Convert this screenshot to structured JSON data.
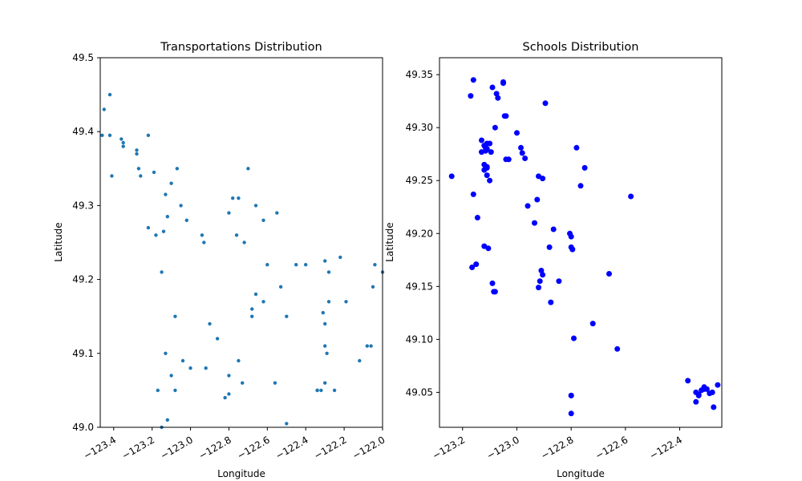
{
  "chart_data": [
    {
      "type": "scatter",
      "title": "Transportations Distribution",
      "xlabel": "Longitude",
      "ylabel": "Latitude",
      "xlim": [
        -123.47,
        -122.0
      ],
      "ylim": [
        49.0,
        49.5
      ],
      "xticks": [
        -123.4,
        -123.2,
        -123.0,
        -122.8,
        -122.6,
        -122.4,
        -122.2,
        -122.0
      ],
      "xtick_labels": [
        "−123.4",
        "−123.2",
        "−123.0",
        "−122.8",
        "−122.6",
        "−122.4",
        "−122.2",
        "−122.0"
      ],
      "yticks": [
        49.0,
        49.1,
        49.2,
        49.3,
        49.4,
        49.5
      ],
      "ytick_labels": [
        "49.0",
        "49.1",
        "49.2",
        "49.3",
        "49.4",
        "49.5"
      ],
      "marker_color": "#1f77b4",
      "marker_size": 2.2,
      "grid": false,
      "series": [
        {
          "x": [
            -123.45,
            -123.46,
            -123.42,
            -123.41,
            -123.42,
            -123.36,
            -123.35,
            -123.35,
            -123.28,
            -123.28,
            -123.27,
            -123.26,
            -123.22,
            -123.19,
            -123.13,
            -123.1,
            -123.07,
            -123.05,
            -123.02,
            -122.94,
            -122.93,
            -122.8,
            -122.7,
            -122.75,
            -122.78,
            -122.76,
            -122.72,
            -122.66,
            -122.62,
            -122.55,
            -122.6,
            -122.62,
            -122.68,
            -122.5,
            -122.53,
            -122.45,
            -122.4,
            -122.3,
            -122.28,
            -122.3,
            -122.32,
            -122.12,
            -122.08,
            -122.06,
            -122.05,
            -122.04,
            -122.0,
            -122.19,
            -122.22,
            -122.28,
            -122.3,
            -122.31,
            -122.34,
            -122.3,
            -122.25,
            -122.29,
            -122.34,
            -122.5,
            -122.56,
            -122.68,
            -122.66,
            -122.73,
            -122.75,
            -122.8,
            -122.82,
            -122.8,
            -122.86,
            -122.9,
            -122.92,
            -123.0,
            -123.04,
            -123.08,
            -123.1,
            -123.12,
            -123.15,
            -123.17,
            -123.13,
            -123.08,
            -123.22,
            -123.18,
            -123.14,
            -123.12,
            -123.15
          ],
          "y": [
            49.43,
            49.395,
            49.395,
            49.34,
            49.45,
            49.39,
            49.385,
            49.38,
            49.37,
            49.375,
            49.35,
            49.34,
            49.395,
            49.345,
            49.315,
            49.33,
            49.35,
            49.3,
            49.28,
            49.26,
            49.25,
            49.29,
            49.35,
            49.31,
            49.31,
            49.26,
            49.25,
            49.3,
            49.28,
            49.29,
            49.22,
            49.17,
            49.16,
            49.15,
            49.19,
            49.22,
            49.22,
            49.14,
            49.17,
            49.11,
            49.05,
            49.09,
            49.11,
            49.11,
            49.19,
            49.22,
            49.21,
            49.17,
            49.23,
            49.21,
            49.225,
            49.155,
            49.05,
            49.06,
            49.05,
            49.1,
            49.05,
            49.005,
            49.06,
            49.15,
            49.18,
            49.06,
            49.09,
            49.045,
            49.04,
            49.07,
            49.12,
            49.14,
            49.08,
            49.08,
            49.09,
            49.05,
            49.07,
            49.01,
            49.0,
            49.05,
            49.1,
            49.15,
            49.27,
            49.26,
            49.265,
            49.285,
            49.21
          ]
        }
      ]
    },
    {
      "type": "scatter",
      "title": "Schools Distribution",
      "xlabel": "Longitude",
      "ylabel": "Latitude",
      "xlim": [
        -123.285,
        -122.245
      ],
      "ylim": [
        49.017,
        49.366
      ],
      "xticks": [
        -123.2,
        -123.0,
        -122.8,
        -122.6,
        -122.4
      ],
      "xtick_labels": [
        "−123.2",
        "−123.0",
        "−122.8",
        "−122.6",
        "−122.4"
      ],
      "yticks": [
        49.05,
        49.1,
        49.15,
        49.2,
        49.25,
        49.3,
        49.35
      ],
      "ytick_labels": [
        "49.05",
        "49.10",
        "49.15",
        "49.20",
        "49.25",
        "49.30",
        "49.35"
      ],
      "marker_color": "#0000ff",
      "marker_size": 3.5,
      "grid": false,
      "series": [
        {
          "x": [
            -123.24,
            -123.16,
            -123.17,
            -123.16,
            -123.09,
            -123.075,
            -123.07,
            -123.05,
            -123.04,
            -123.1,
            -123.13,
            -123.12,
            -123.115,
            -123.11,
            -123.13,
            -123.115,
            -123.095,
            -123.11,
            -123.12,
            -123.11,
            -123.1,
            -123.105,
            -123.12,
            -123.05,
            -123.045,
            -122.895,
            -122.97,
            -122.98,
            -122.985,
            -123.04,
            -123.12,
            -123.11,
            -123.085,
            -123.09,
            -123.08,
            -123.145,
            -123.15,
            -123.165,
            -122.92,
            -122.905,
            -122.925,
            -122.865,
            -122.88,
            -122.935,
            -122.805,
            -122.8,
            -122.795,
            -122.8,
            -122.78,
            -122.765,
            -122.75,
            -122.58,
            -122.66,
            -122.72,
            -122.79,
            -122.8,
            -122.845,
            -122.91,
            -122.915,
            -122.92,
            -122.905,
            -122.875,
            -122.63,
            -122.8,
            -122.8,
            -122.37,
            -122.34,
            -122.33,
            -122.32,
            -122.31,
            -122.3,
            -122.29,
            -122.28,
            -122.26,
            -122.275,
            -122.34,
            -122.31,
            -122.33,
            -123.03,
            -122.96,
            -123.0,
            -123.08,
            -123.11
          ],
          "y": [
            49.254,
            49.345,
            49.33,
            49.237,
            49.338,
            49.332,
            49.328,
            49.343,
            49.311,
            49.285,
            49.288,
            49.283,
            49.281,
            49.28,
            49.277,
            49.278,
            49.277,
            49.262,
            49.265,
            49.263,
            49.25,
            49.186,
            49.188,
            49.342,
            49.311,
            49.323,
            49.271,
            49.276,
            49.281,
            49.27,
            49.26,
            49.255,
            49.145,
            49.153,
            49.145,
            49.215,
            49.171,
            49.168,
            49.254,
            49.252,
            49.232,
            49.204,
            49.187,
            49.21,
            49.2,
            49.197,
            49.185,
            49.187,
            49.281,
            49.245,
            49.262,
            49.235,
            49.162,
            49.115,
            49.101,
            49.047,
            49.155,
            49.165,
            49.155,
            49.149,
            49.161,
            49.135,
            49.091,
            49.03,
            49.047,
            49.061,
            49.041,
            49.048,
            49.052,
            49.055,
            49.053,
            49.049,
            49.05,
            49.057,
            49.036,
            49.05,
            49.053,
            49.047,
            49.27,
            49.226,
            49.295,
            49.3,
            49.285
          ]
        }
      ]
    }
  ]
}
